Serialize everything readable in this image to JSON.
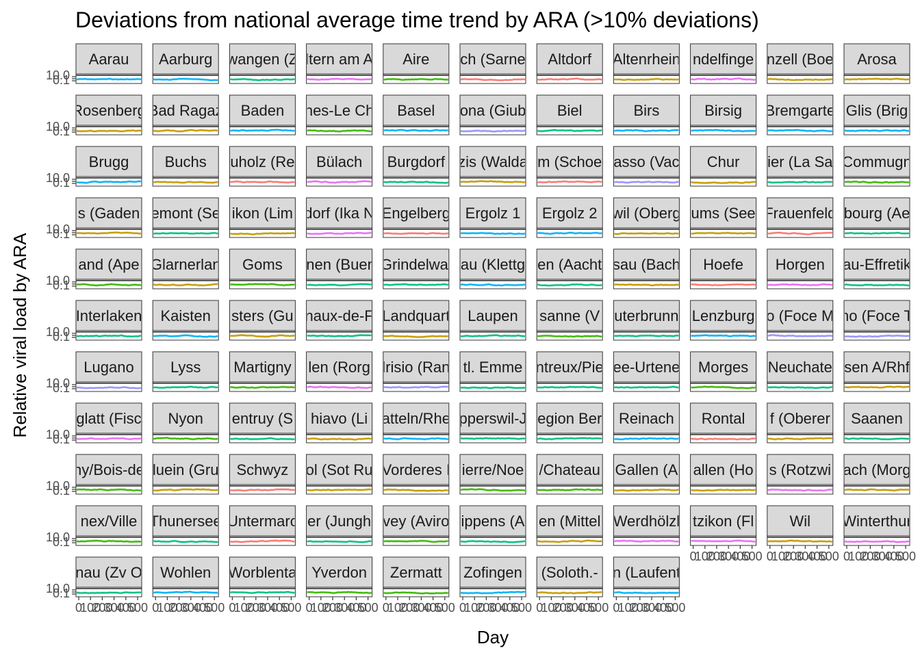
{
  "chart_data": {
    "type": "line",
    "title": "Deviations from national average time trend by ARA (>10% deviations)",
    "xlabel": "Day",
    "ylabel": "Relative viral load by ARA",
    "x_ticks": [
      "0",
      "100",
      "200",
      "300",
      "400",
      "500"
    ],
    "y_ticks": [
      "0.1",
      "10.0"
    ],
    "xlim": [
      0,
      500
    ],
    "ylim": [
      0.1,
      10.0
    ],
    "y_scale": "log",
    "legend": "none",
    "panel_colors": [
      "#00B0F6",
      "#F8766D",
      "#00BF7D",
      "#E76BF3",
      "#A3A500",
      "#9590FF",
      "#39B600",
      "#C49A00"
    ],
    "panels": [
      {
        "label": "Aarau",
        "color": "#00B0F6"
      },
      {
        "label": "Aarburg",
        "color": "#00B0F6"
      },
      {
        "label": "wangen (Z",
        "color": "#00BF7D"
      },
      {
        "label": "ltern am A",
        "color": "#E76BF3"
      },
      {
        "label": "Aire",
        "color": "#39B600"
      },
      {
        "label": "ch (Sarne",
        "color": "#F8766D"
      },
      {
        "label": "Altdorf",
        "color": "#F8766D"
      },
      {
        "label": "Altenrhein",
        "color": "#C49A00"
      },
      {
        "label": "ndelfinge",
        "color": "#E76BF3"
      },
      {
        "label": "nzell (Boe",
        "color": "#C49A00"
      },
      {
        "label": "Arosa",
        "color": "#C49A00"
      },
      {
        "label": "Rosenberg",
        "color": "#C49A00"
      },
      {
        "label": "Bad Ragaz",
        "color": "#C49A00"
      },
      {
        "label": "Baden",
        "color": "#00B0F6"
      },
      {
        "label": "nes-Le Ch",
        "color": "#39B600"
      },
      {
        "label": "Basel",
        "color": "#00B0F6"
      },
      {
        "label": "ona (Giub",
        "color": "#9590FF"
      },
      {
        "label": "Biel",
        "color": "#00BF7D"
      },
      {
        "label": "Birs",
        "color": "#00B0F6"
      },
      {
        "label": "Birsig",
        "color": "#00B0F6"
      },
      {
        "label": "Bremgarte",
        "color": "#00B0F6"
      },
      {
        "label": "Glis (Brig",
        "color": "#00B0F6"
      },
      {
        "label": "Brugg",
        "color": "#00B0F6"
      },
      {
        "label": "Buchs",
        "color": "#C49A00"
      },
      {
        "label": "uholz (Re",
        "color": "#F8766D"
      },
      {
        "label": "Bülach",
        "color": "#E76BF3"
      },
      {
        "label": "Burgdorf",
        "color": "#00BF7D"
      },
      {
        "label": "zis (Walda",
        "color": "#C49A00"
      },
      {
        "label": "m (Schoe",
        "color": "#F8766D"
      },
      {
        "label": "asso (Vac",
        "color": "#9590FF"
      },
      {
        "label": "Chur",
        "color": "#C49A00"
      },
      {
        "label": "ier (La Sa",
        "color": "#00BF7D"
      },
      {
        "label": "Commugn",
        "color": "#39B600"
      },
      {
        "label": "s (Gaden",
        "color": "#C49A00"
      },
      {
        "label": "emont (Se",
        "color": "#00BF7D"
      },
      {
        "label": "ikon (Lim",
        "color": "#C49A00"
      },
      {
        "label": "dorf (Ika N",
        "color": "#E76BF3"
      },
      {
        "label": "Engelberg",
        "color": "#F8766D"
      },
      {
        "label": "Ergolz 1",
        "color": "#00B0F6"
      },
      {
        "label": "Ergolz 2",
        "color": "#00B0F6"
      },
      {
        "label": "wil (Oberg",
        "color": "#C49A00"
      },
      {
        "label": "ums (See",
        "color": "#C49A00"
      },
      {
        "label": "Frauenfeld",
        "color": "#F8766D"
      },
      {
        "label": "bourg (Ae",
        "color": "#00BF7D"
      },
      {
        "label": "and (Ape",
        "color": "#39B600"
      },
      {
        "label": "Glarnerlan",
        "color": "#C49A00"
      },
      {
        "label": "Goms",
        "color": "#39B600"
      },
      {
        "label": "nen (Buer",
        "color": "#00BF7D"
      },
      {
        "label": "Grindelwal",
        "color": "#00BF7D"
      },
      {
        "label": "au (Klettg",
        "color": "#00B0F6"
      },
      {
        "label": "en (Aacht",
        "color": "#00BF7D"
      },
      {
        "label": "sau (Bach",
        "color": "#C49A00"
      },
      {
        "label": "Hoefe",
        "color": "#F8766D"
      },
      {
        "label": "Horgen",
        "color": "#E76BF3"
      },
      {
        "label": "au-Effretik",
        "color": "#00BF7D"
      },
      {
        "label": "Interlaken",
        "color": "#00BF7D"
      },
      {
        "label": "Kaisten",
        "color": "#00B0F6"
      },
      {
        "label": "sters (Gu",
        "color": "#C49A00"
      },
      {
        "label": "naux-de-F",
        "color": "#00BF7D"
      },
      {
        "label": "Landquart",
        "color": "#C49A00"
      },
      {
        "label": "Laupen",
        "color": "#00BF7D"
      },
      {
        "label": "sanne (V",
        "color": "#39B600"
      },
      {
        "label": "uterbrunn",
        "color": "#00BF7D"
      },
      {
        "label": "Lenzburg",
        "color": "#00B0F6"
      },
      {
        "label": "o (Foce M",
        "color": "#9590FF"
      },
      {
        "label": "no (Foce T",
        "color": "#9590FF"
      },
      {
        "label": "Lugano",
        "color": "#9590FF"
      },
      {
        "label": "Lyss",
        "color": "#00BF7D"
      },
      {
        "label": "Martigny",
        "color": "#39B600"
      },
      {
        "label": "len (Rorg",
        "color": "#E76BF3"
      },
      {
        "label": "lrisio (Ran",
        "color": "#9590FF"
      },
      {
        "label": "tl. Emme",
        "color": "#00BF7D"
      },
      {
        "label": "ntreux/Pie",
        "color": "#00BF7D"
      },
      {
        "label": "ee-Urtene",
        "color": "#00BF7D"
      },
      {
        "label": "Morges",
        "color": "#39B600"
      },
      {
        "label": "Neuchate",
        "color": "#00BF7D"
      },
      {
        "label": "sen A/Rhf",
        "color": "#C49A00"
      },
      {
        "label": "glatt (Fisc",
        "color": "#E76BF3"
      },
      {
        "label": "Nyon",
        "color": "#39B600"
      },
      {
        "label": "entruy (S",
        "color": "#00BF7D"
      },
      {
        "label": "hiavo (Li",
        "color": "#C49A00"
      },
      {
        "label": "atteln/Rhe",
        "color": "#00B0F6"
      },
      {
        "label": "pperswil-J",
        "color": "#00BF7D"
      },
      {
        "label": "egion Ber",
        "color": "#00BF7D"
      },
      {
        "label": "Reinach",
        "color": "#00B0F6"
      },
      {
        "label": "Rontal",
        "color": "#F8766D"
      },
      {
        "label": "f (Oberer",
        "color": "#C49A00"
      },
      {
        "label": "Saanen",
        "color": "#00BF7D"
      },
      {
        "label": "ny/Bois-de",
        "color": "#39B600"
      },
      {
        "label": "luein (Gru",
        "color": "#C49A00"
      },
      {
        "label": "Schwyz",
        "color": "#F8766D"
      },
      {
        "label": "ol (Sot Ru",
        "color": "#C49A00"
      },
      {
        "label": "Vorderes I",
        "color": "#C49A00"
      },
      {
        "label": "ierre/Noe",
        "color": "#39B600"
      },
      {
        "label": "/Chateau",
        "color": "#39B600"
      },
      {
        "label": "Gallen (A",
        "color": "#C49A00"
      },
      {
        "label": "allen (Ho",
        "color": "#C49A00"
      },
      {
        "label": "s (Rotzwi",
        "color": "#E76BF3"
      },
      {
        "label": "ach (Morg",
        "color": "#C49A00"
      },
      {
        "label": "nex/Ville",
        "color": "#39B600"
      },
      {
        "label": "Thunersee",
        "color": "#00BF7D"
      },
      {
        "label": "Untermarc",
        "color": "#F8766D"
      },
      {
        "label": "er (Jungh",
        "color": "#00BF7D"
      },
      {
        "label": "vey (Aviro",
        "color": "#39B600"
      },
      {
        "label": "ippens (A",
        "color": "#00BF7D"
      },
      {
        "label": "en (Mittel",
        "color": "#C49A00"
      },
      {
        "label": "Werdhölzl",
        "color": "#E76BF3"
      },
      {
        "label": "tzikon (Fl",
        "color": "#E76BF3"
      },
      {
        "label": "Wil",
        "color": "#C49A00"
      },
      {
        "label": "Winterthur",
        "color": "#E76BF3"
      },
      {
        "label": "nau (Zv O",
        "color": "#00BF7D"
      },
      {
        "label": "Wohlen",
        "color": "#00B0F6"
      },
      {
        "label": "Worblenta",
        "color": "#00BF7D"
      },
      {
        "label": "Yverdon",
        "color": "#39B600"
      },
      {
        "label": "Zermatt",
        "color": "#39B600"
      },
      {
        "label": "Zofingen",
        "color": "#00B0F6"
      },
      {
        "label": "(Soloth.-",
        "color": "#C49A00"
      },
      {
        "label": "n (Laufent",
        "color": "#00B0F6"
      }
    ]
  }
}
